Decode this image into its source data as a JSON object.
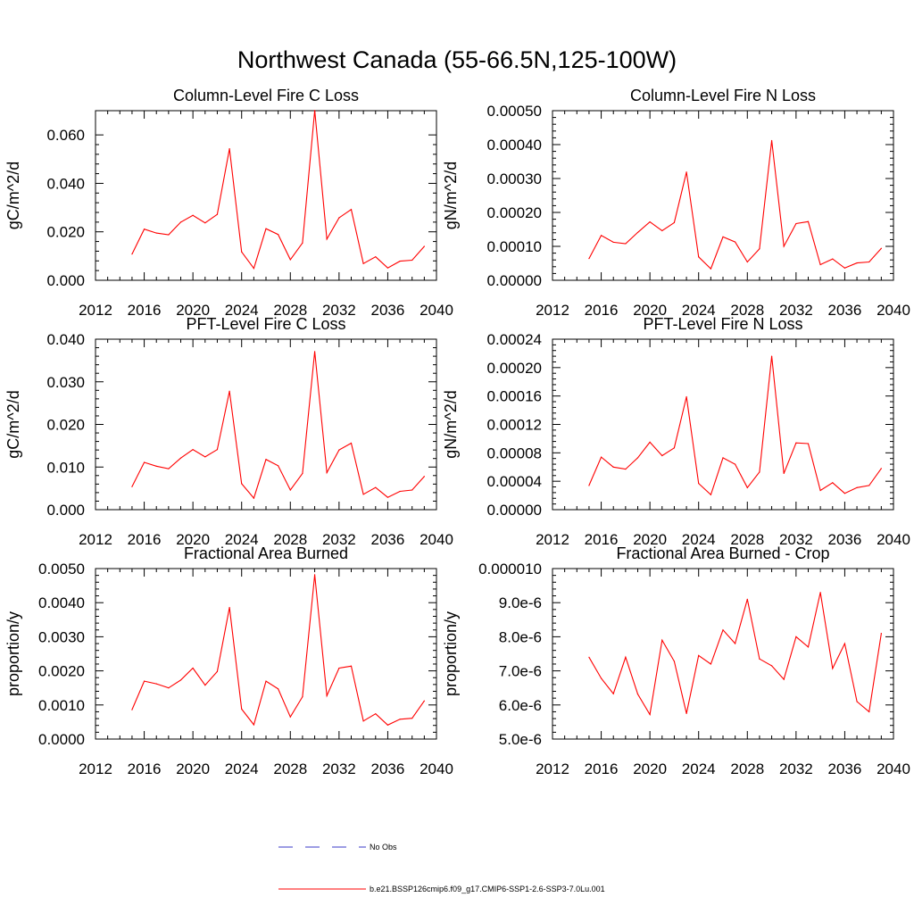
{
  "figure": {
    "title": "Northwest Canada (55-66.5N,125-100W)"
  },
  "legend": {
    "items": [
      {
        "label": "No Obs",
        "color": "#3b3bc8",
        "dash": true
      },
      {
        "label": "b.e21.BSSP126cmip6.f09_g17.CMIP6-SSP1-2.6-SSP3-7.0Lu.001",
        "color": "#ff0000",
        "dash": false
      }
    ]
  },
  "chart_data": [
    {
      "type": "line",
      "title": "Column-Level Fire C Loss",
      "xlabel": "",
      "ylabel": "gC/m^2/d",
      "xlim": [
        2012,
        2040
      ],
      "ylim": [
        0,
        0.07
      ],
      "xticks": [
        "2012",
        "2016",
        "2020",
        "2024",
        "2028",
        "2032",
        "2036",
        "2040"
      ],
      "yticks": [
        "0.000",
        "0.020",
        "0.040",
        "0.060"
      ],
      "ytick_values": [
        0,
        0.02,
        0.04,
        0.06
      ],
      "color": "#ff0000",
      "x": [
        2015,
        2016,
        2017,
        2018,
        2019,
        2020,
        2021,
        2022,
        2023,
        2024,
        2025,
        2026,
        2027,
        2028,
        2029,
        2030,
        2031,
        2032,
        2033,
        2034,
        2035,
        2036,
        2037,
        2038,
        2039
      ],
      "values": [
        0.0108,
        0.0211,
        0.0195,
        0.0188,
        0.024,
        0.0268,
        0.0237,
        0.0272,
        0.0543,
        0.0117,
        0.0049,
        0.0213,
        0.0189,
        0.0085,
        0.0154,
        0.0701,
        0.017,
        0.0258,
        0.0292,
        0.0069,
        0.0097,
        0.0051,
        0.0079,
        0.0083,
        0.014
      ]
    },
    {
      "type": "line",
      "title": "Column-Level Fire N Loss",
      "xlabel": "",
      "ylabel": "gN/m^2/d",
      "xlim": [
        2012,
        2040
      ],
      "ylim": [
        0,
        0.0005
      ],
      "xticks": [
        "2012",
        "2016",
        "2020",
        "2024",
        "2028",
        "2032",
        "2036",
        "2040"
      ],
      "yticks": [
        "0.00000",
        "0.00010",
        "0.00020",
        "0.00030",
        "0.00040",
        "0.00050"
      ],
      "ytick_values": [
        0,
        0.0001,
        0.0002,
        0.0003,
        0.0004,
        0.0005
      ],
      "color": "#ff0000",
      "x": [
        2015,
        2016,
        2017,
        2018,
        2019,
        2020,
        2021,
        2022,
        2023,
        2024,
        2025,
        2026,
        2027,
        2028,
        2029,
        2030,
        2031,
        2032,
        2033,
        2034,
        2035,
        2036,
        2037,
        2038,
        2039
      ],
      "values": [
        6.4e-05,
        0.000132,
        0.000112,
        0.000108,
        0.000141,
        0.000172,
        0.000146,
        0.00017,
        0.000319,
        6.9e-05,
        3.4e-05,
        0.000128,
        0.000113,
        5.4e-05,
        9.3e-05,
        0.000412,
        0.0001,
        0.000167,
        0.000173,
        4.6e-05,
        6.3e-05,
        3.6e-05,
        5.1e-05,
        5.4e-05,
        9.4e-05
      ]
    },
    {
      "type": "line",
      "title": "PFT-Level Fire C Loss",
      "xlabel": "",
      "ylabel": "gC/m^2/d",
      "xlim": [
        2012,
        2040
      ],
      "ylim": [
        0,
        0.04
      ],
      "xticks": [
        "2012",
        "2016",
        "2020",
        "2024",
        "2028",
        "2032",
        "2036",
        "2040"
      ],
      "yticks": [
        "0.000",
        "0.010",
        "0.020",
        "0.030",
        "0.040"
      ],
      "ytick_values": [
        0,
        0.01,
        0.02,
        0.03,
        0.04
      ],
      "color": "#ff0000",
      "x": [
        2015,
        2016,
        2017,
        2018,
        2019,
        2020,
        2021,
        2022,
        2023,
        2024,
        2025,
        2026,
        2027,
        2028,
        2029,
        2030,
        2031,
        2032,
        2033,
        2034,
        2035,
        2036,
        2037,
        2038,
        2039
      ],
      "values": [
        0.0054,
        0.0111,
        0.0102,
        0.0096,
        0.0121,
        0.0141,
        0.0124,
        0.0141,
        0.0278,
        0.0061,
        0.0027,
        0.0118,
        0.0103,
        0.0046,
        0.0085,
        0.0371,
        0.0087,
        0.014,
        0.0156,
        0.0036,
        0.0052,
        0.0029,
        0.0043,
        0.0046,
        0.0078
      ]
    },
    {
      "type": "line",
      "title": "PFT-Level Fire N Loss",
      "xlabel": "",
      "ylabel": "gN/m^2/d",
      "xlim": [
        2012,
        2040
      ],
      "ylim": [
        0,
        0.00024
      ],
      "xticks": [
        "2012",
        "2016",
        "2020",
        "2024",
        "2028",
        "2032",
        "2036",
        "2040"
      ],
      "yticks": [
        "0.00000",
        "0.00004",
        "0.00008",
        "0.00012",
        "0.00016",
        "0.00020",
        "0.00024"
      ],
      "ytick_values": [
        0,
        4e-05,
        8e-05,
        0.00012,
        0.00016,
        0.0002,
        0.00024
      ],
      "color": "#ff0000",
      "x": [
        2015,
        2016,
        2017,
        2018,
        2019,
        2020,
        2021,
        2022,
        2023,
        2024,
        2025,
        2026,
        2027,
        2028,
        2029,
        2030,
        2031,
        2032,
        2033,
        2034,
        2035,
        2036,
        2037,
        2038,
        2039
      ],
      "values": [
        3.4e-05,
        7.4e-05,
        6e-05,
        5.7e-05,
        7.3e-05,
        9.5e-05,
        7.6e-05,
        8.7e-05,
        0.000159,
        3.7e-05,
        2.1e-05,
        7.3e-05,
        6.4e-05,
        3.1e-05,
        5.3e-05,
        0.000216,
        5.1e-05,
        9.4e-05,
        9.3e-05,
        2.7e-05,
        3.8e-05,
        2.3e-05,
        3.1e-05,
        3.4e-05,
        5.8e-05
      ]
    },
    {
      "type": "line",
      "title": "Fractional Area Burned",
      "xlabel": "",
      "ylabel": "proportion/y",
      "xlim": [
        2012,
        2040
      ],
      "ylim": [
        0,
        0.005
      ],
      "xticks": [
        "2012",
        "2016",
        "2020",
        "2024",
        "2028",
        "2032",
        "2036",
        "2040"
      ],
      "yticks": [
        "0.0000",
        "0.0010",
        "0.0020",
        "0.0030",
        "0.0040",
        "0.0050"
      ],
      "ytick_values": [
        0,
        0.001,
        0.002,
        0.003,
        0.004,
        0.005
      ],
      "color": "#ff0000",
      "x": [
        2015,
        2016,
        2017,
        2018,
        2019,
        2020,
        2021,
        2022,
        2023,
        2024,
        2025,
        2026,
        2027,
        2028,
        2029,
        2030,
        2031,
        2032,
        2033,
        2034,
        2035,
        2036,
        2037,
        2038,
        2039
      ],
      "values": [
        0.00086,
        0.0017,
        0.00162,
        0.0015,
        0.00173,
        0.00208,
        0.00158,
        0.00198,
        0.00386,
        0.00088,
        0.00042,
        0.0017,
        0.00147,
        0.00065,
        0.00124,
        0.00482,
        0.00127,
        0.00208,
        0.00214,
        0.00053,
        0.00074,
        0.00041,
        0.00058,
        0.00061,
        0.00112
      ]
    },
    {
      "type": "line",
      "title": "Fractional Area Burned - Crop",
      "xlabel": "",
      "ylabel": "proportion/y",
      "xlim": [
        2012,
        2040
      ],
      "ylim": [
        5e-06,
        1e-05
      ],
      "xticks": [
        "2012",
        "2016",
        "2020",
        "2024",
        "2028",
        "2032",
        "2036",
        "2040"
      ],
      "yticks": [
        "5.0e-6",
        "6.0e-6",
        "7.0e-6",
        "8.0e-6",
        "9.0e-6",
        "0.000010"
      ],
      "ytick_values": [
        5e-06,
        6e-06,
        7e-06,
        8e-06,
        9e-06,
        1e-05
      ],
      "color": "#ff0000",
      "x": [
        2015,
        2016,
        2017,
        2018,
        2019,
        2020,
        2021,
        2022,
        2023,
        2024,
        2025,
        2026,
        2027,
        2028,
        2029,
        2030,
        2031,
        2032,
        2033,
        2034,
        2035,
        2036,
        2037,
        2038,
        2039
      ],
      "values": [
        7.4e-06,
        6.78e-06,
        6.33e-06,
        7.4e-06,
        6.32e-06,
        5.72e-06,
        7.9e-06,
        7.28e-06,
        5.75e-06,
        7.45e-06,
        7.2e-06,
        8.2e-06,
        7.8e-06,
        9.1e-06,
        7.35e-06,
        7.15e-06,
        6.75e-06,
        8e-06,
        7.7e-06,
        9.3e-06,
        7.07e-06,
        7.8e-06,
        6.1e-06,
        5.8e-06,
        8.1e-06
      ]
    }
  ]
}
